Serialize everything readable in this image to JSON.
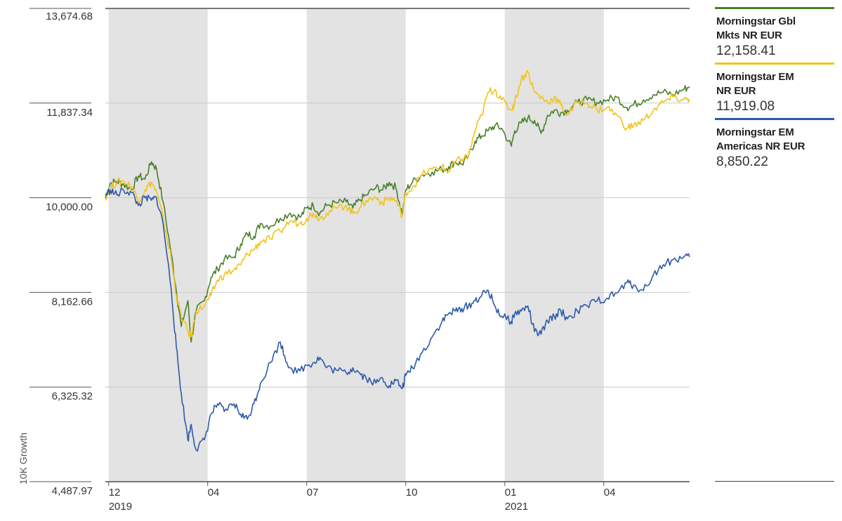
{
  "chart_data": {
    "type": "line",
    "ylabel": "10K Growth",
    "ylim": [
      4487.97,
      13674.68
    ],
    "y_ticks": [
      "13,674.68",
      "11,837.34",
      "10,000.00",
      "8,162.66",
      "6,325.32",
      "4,487.97"
    ],
    "y_tick_values": [
      13674.68,
      11837.34,
      10000.0,
      8162.66,
      6325.32,
      4487.97
    ],
    "x_ticks": [
      {
        "label": "12",
        "year": "2019"
      },
      {
        "label": "04",
        "year": ""
      },
      {
        "label": "07",
        "year": ""
      },
      {
        "label": "10",
        "year": ""
      },
      {
        "label": "01",
        "year": "2021"
      },
      {
        "label": "04",
        "year": ""
      }
    ],
    "grid": true,
    "legend_position": "right",
    "series": [
      {
        "name": "Morningstar Gbl Mkts NR EUR",
        "name_lines": [
          "Morningstar Gbl",
          "Mkts NR EUR"
        ],
        "value_label": "12,158.41",
        "color": "#4a7f2b",
        "points": [
          [
            0,
            10000
          ],
          [
            0.15,
            10280
          ],
          [
            0.35,
            10320
          ],
          [
            0.55,
            10260
          ],
          [
            0.8,
            10160
          ],
          [
            1.0,
            10420
          ],
          [
            1.2,
            10360
          ],
          [
            1.4,
            10700
          ],
          [
            1.55,
            10560
          ],
          [
            1.75,
            9920
          ],
          [
            2.0,
            8900
          ],
          [
            2.15,
            8200
          ],
          [
            2.3,
            7500
          ],
          [
            2.5,
            8000
          ],
          [
            2.6,
            7200
          ],
          [
            2.75,
            7800
          ],
          [
            3.0,
            8000
          ],
          [
            3.2,
            8450
          ],
          [
            3.4,
            8620
          ],
          [
            3.6,
            8800
          ],
          [
            3.9,
            8850
          ],
          [
            4.1,
            9100
          ],
          [
            4.3,
            9300
          ],
          [
            4.5,
            9250
          ],
          [
            4.7,
            9500
          ],
          [
            5.0,
            9450
          ],
          [
            5.3,
            9600
          ],
          [
            5.6,
            9700
          ],
          [
            5.9,
            9620
          ],
          [
            6.1,
            9800
          ],
          [
            6.3,
            9850
          ],
          [
            6.5,
            9700
          ],
          [
            6.7,
            9850
          ],
          [
            7.0,
            9900
          ],
          [
            7.3,
            9920
          ],
          [
            7.5,
            9800
          ],
          [
            7.7,
            9950
          ],
          [
            7.9,
            10050
          ],
          [
            8.2,
            10200
          ],
          [
            8.4,
            10150
          ],
          [
            8.6,
            10300
          ],
          [
            8.8,
            10200
          ],
          [
            9.0,
            9680
          ],
          [
            9.1,
            10150
          ],
          [
            9.3,
            10300
          ],
          [
            9.6,
            10450
          ],
          [
            9.9,
            10500
          ],
          [
            10.2,
            10550
          ],
          [
            10.4,
            10600
          ],
          [
            10.6,
            10700
          ],
          [
            10.8,
            10650
          ],
          [
            11.0,
            10800
          ],
          [
            11.2,
            11100
          ],
          [
            11.4,
            11200
          ],
          [
            11.6,
            11300
          ],
          [
            11.8,
            11400
          ],
          [
            12.0,
            11350
          ],
          [
            12.3,
            11000
          ],
          [
            12.4,
            11300
          ],
          [
            12.6,
            11450
          ],
          [
            12.8,
            11550
          ],
          [
            13.0,
            11500
          ],
          [
            13.2,
            11250
          ],
          [
            13.4,
            11600
          ],
          [
            13.6,
            11700
          ],
          [
            13.8,
            11650
          ],
          [
            14.0,
            11700
          ],
          [
            14.3,
            11850
          ],
          [
            14.6,
            11900
          ],
          [
            14.9,
            11850
          ],
          [
            15.2,
            11900
          ],
          [
            15.5,
            11950
          ],
          [
            15.8,
            11750
          ],
          [
            16.0,
            11800
          ],
          [
            16.3,
            11900
          ],
          [
            16.6,
            12000
          ],
          [
            16.9,
            12050
          ],
          [
            17.2,
            12000
          ],
          [
            17.5,
            12100
          ],
          [
            17.7,
            12158
          ]
        ]
      },
      {
        "name": "Morningstar EM NR EUR",
        "name_lines": [
          "Morningstar EM",
          "NR EUR"
        ],
        "value_label": "11,919.08",
        "color": "#f2c31a",
        "points": [
          [
            0,
            10000
          ],
          [
            0.15,
            10200
          ],
          [
            0.35,
            10300
          ],
          [
            0.55,
            10320
          ],
          [
            0.8,
            10220
          ],
          [
            1.0,
            9950
          ],
          [
            1.2,
            10150
          ],
          [
            1.4,
            10300
          ],
          [
            1.55,
            10100
          ],
          [
            1.75,
            9600
          ],
          [
            2.0,
            8800
          ],
          [
            2.15,
            8100
          ],
          [
            2.3,
            7700
          ],
          [
            2.5,
            7400
          ],
          [
            2.6,
            7300
          ],
          [
            2.75,
            7800
          ],
          [
            3.0,
            7900
          ],
          [
            3.2,
            8100
          ],
          [
            3.4,
            8400
          ],
          [
            3.6,
            8500
          ],
          [
            3.9,
            8600
          ],
          [
            4.1,
            8700
          ],
          [
            4.3,
            8900
          ],
          [
            4.5,
            9000
          ],
          [
            4.7,
            9150
          ],
          [
            5.0,
            9200
          ],
          [
            5.3,
            9350
          ],
          [
            5.6,
            9550
          ],
          [
            5.9,
            9500
          ],
          [
            6.1,
            9600
          ],
          [
            6.3,
            9700
          ],
          [
            6.5,
            9600
          ],
          [
            6.7,
            9700
          ],
          [
            7.0,
            9800
          ],
          [
            7.3,
            9850
          ],
          [
            7.5,
            9700
          ],
          [
            7.7,
            9800
          ],
          [
            7.9,
            9950
          ],
          [
            8.2,
            10000
          ],
          [
            8.4,
            9900
          ],
          [
            8.6,
            10000
          ],
          [
            8.8,
            9950
          ],
          [
            9.0,
            9650
          ],
          [
            9.1,
            10100
          ],
          [
            9.3,
            10200
          ],
          [
            9.6,
            10450
          ],
          [
            9.9,
            10550
          ],
          [
            10.2,
            10600
          ],
          [
            10.4,
            10500
          ],
          [
            10.6,
            10700
          ],
          [
            10.8,
            10750
          ],
          [
            11.0,
            10800
          ],
          [
            11.2,
            11300
          ],
          [
            11.4,
            11600
          ],
          [
            11.6,
            12050
          ],
          [
            11.8,
            12100
          ],
          [
            12.0,
            11900
          ],
          [
            12.3,
            11700
          ],
          [
            12.4,
            11850
          ],
          [
            12.6,
            12300
          ],
          [
            12.8,
            12450
          ],
          [
            13.0,
            12050
          ],
          [
            13.2,
            11950
          ],
          [
            13.4,
            11850
          ],
          [
            13.6,
            11950
          ],
          [
            13.8,
            11800
          ],
          [
            14.0,
            11600
          ],
          [
            14.3,
            11850
          ],
          [
            14.6,
            11850
          ],
          [
            14.9,
            11700
          ],
          [
            15.2,
            11750
          ],
          [
            15.5,
            11600
          ],
          [
            15.8,
            11350
          ],
          [
            16.0,
            11400
          ],
          [
            16.3,
            11500
          ],
          [
            16.6,
            11700
          ],
          [
            16.9,
            11850
          ],
          [
            17.2,
            11950
          ],
          [
            17.5,
            11900
          ],
          [
            17.7,
            11919
          ]
        ]
      },
      {
        "name": "Morningstar EM Americas NR EUR",
        "name_lines": [
          "Morningstar EM",
          "Americas NR EUR"
        ],
        "value_label": "8,850.22",
        "color": "#2d5aa8",
        "points": [
          [
            0,
            10050
          ],
          [
            0.15,
            10150
          ],
          [
            0.35,
            10050
          ],
          [
            0.55,
            10150
          ],
          [
            0.8,
            10100
          ],
          [
            1.0,
            9850
          ],
          [
            1.2,
            10000
          ],
          [
            1.4,
            9950
          ],
          [
            1.55,
            10000
          ],
          [
            1.75,
            9500
          ],
          [
            2.0,
            8200
          ],
          [
            2.15,
            7100
          ],
          [
            2.3,
            6200
          ],
          [
            2.5,
            5300
          ],
          [
            2.6,
            5600
          ],
          [
            2.75,
            5100
          ],
          [
            3.0,
            5300
          ],
          [
            3.2,
            5800
          ],
          [
            3.4,
            6000
          ],
          [
            3.6,
            5850
          ],
          [
            3.9,
            6000
          ],
          [
            4.1,
            5800
          ],
          [
            4.3,
            5700
          ],
          [
            4.5,
            6000
          ],
          [
            4.7,
            6400
          ],
          [
            5.0,
            6800
          ],
          [
            5.3,
            7200
          ],
          [
            5.5,
            6800
          ],
          [
            5.8,
            6600
          ],
          [
            6.1,
            6750
          ],
          [
            6.3,
            6800
          ],
          [
            6.5,
            6900
          ],
          [
            6.7,
            6700
          ],
          [
            7.0,
            6650
          ],
          [
            7.3,
            6600
          ],
          [
            7.5,
            6700
          ],
          [
            7.7,
            6600
          ],
          [
            7.9,
            6500
          ],
          [
            8.2,
            6400
          ],
          [
            8.4,
            6500
          ],
          [
            8.6,
            6350
          ],
          [
            8.8,
            6450
          ],
          [
            9.0,
            6300
          ],
          [
            9.1,
            6550
          ],
          [
            9.3,
            6700
          ],
          [
            9.6,
            7000
          ],
          [
            9.9,
            7300
          ],
          [
            10.2,
            7600
          ],
          [
            10.4,
            7750
          ],
          [
            10.6,
            7800
          ],
          [
            10.8,
            7850
          ],
          [
            11.0,
            7900
          ],
          [
            11.2,
            8000
          ],
          [
            11.4,
            8100
          ],
          [
            11.6,
            8200
          ],
          [
            11.8,
            7900
          ],
          [
            12.0,
            7700
          ],
          [
            12.3,
            7600
          ],
          [
            12.4,
            7750
          ],
          [
            12.6,
            7800
          ],
          [
            12.8,
            7900
          ],
          [
            13.0,
            7400
          ],
          [
            13.2,
            7350
          ],
          [
            13.4,
            7600
          ],
          [
            13.6,
            7700
          ],
          [
            13.8,
            7800
          ],
          [
            14.0,
            7650
          ],
          [
            14.3,
            7800
          ],
          [
            14.6,
            7900
          ],
          [
            14.9,
            8000
          ],
          [
            15.2,
            8050
          ],
          [
            15.5,
            8150
          ],
          [
            15.8,
            8350
          ],
          [
            16.0,
            8300
          ],
          [
            16.3,
            8200
          ],
          [
            16.6,
            8500
          ],
          [
            16.9,
            8700
          ],
          [
            17.2,
            8800
          ],
          [
            17.5,
            8830
          ],
          [
            17.7,
            8850
          ]
        ]
      }
    ]
  }
}
